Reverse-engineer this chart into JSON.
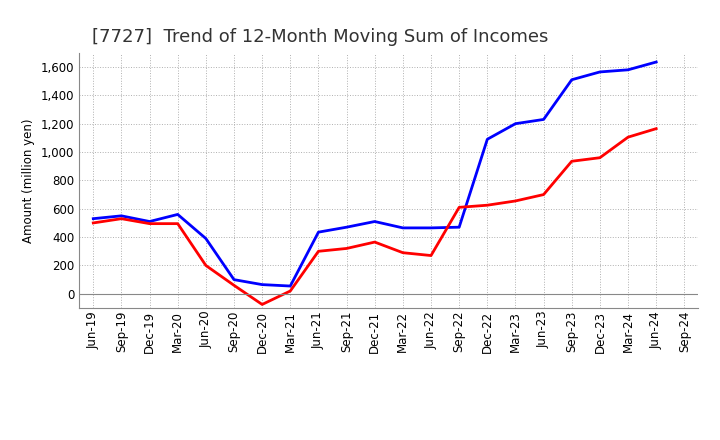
{
  "title": "[7727]  Trend of 12-Month Moving Sum of Incomes",
  "ylabel": "Amount (million yen)",
  "x_labels": [
    "Jun-19",
    "Sep-19",
    "Dec-19",
    "Mar-20",
    "Jun-20",
    "Sep-20",
    "Dec-20",
    "Mar-21",
    "Jun-21",
    "Sep-21",
    "Dec-21",
    "Mar-22",
    "Jun-22",
    "Sep-22",
    "Dec-22",
    "Mar-23",
    "Jun-23",
    "Sep-23",
    "Dec-23",
    "Mar-24",
    "Jun-24",
    "Sep-24"
  ],
  "ordinary_income": [
    530,
    550,
    510,
    560,
    390,
    100,
    65,
    55,
    435,
    470,
    510,
    465,
    465,
    470,
    1090,
    1200,
    1230,
    1510,
    1565,
    1580,
    1635,
    null
  ],
  "net_income": [
    500,
    530,
    495,
    495,
    200,
    60,
    -75,
    20,
    300,
    320,
    365,
    290,
    270,
    610,
    625,
    655,
    700,
    935,
    960,
    1105,
    1165,
    null
  ],
  "ordinary_color": "#0000ff",
  "net_color": "#ff0000",
  "ylim": [
    -100,
    1700
  ],
  "yticks": [
    0,
    200,
    400,
    600,
    800,
    1000,
    1200,
    1400,
    1600
  ],
  "background_color": "#ffffff",
  "grid_color": "#b0b0b0",
  "title_fontsize": 13,
  "legend_fontsize": 10,
  "axis_fontsize": 8.5
}
